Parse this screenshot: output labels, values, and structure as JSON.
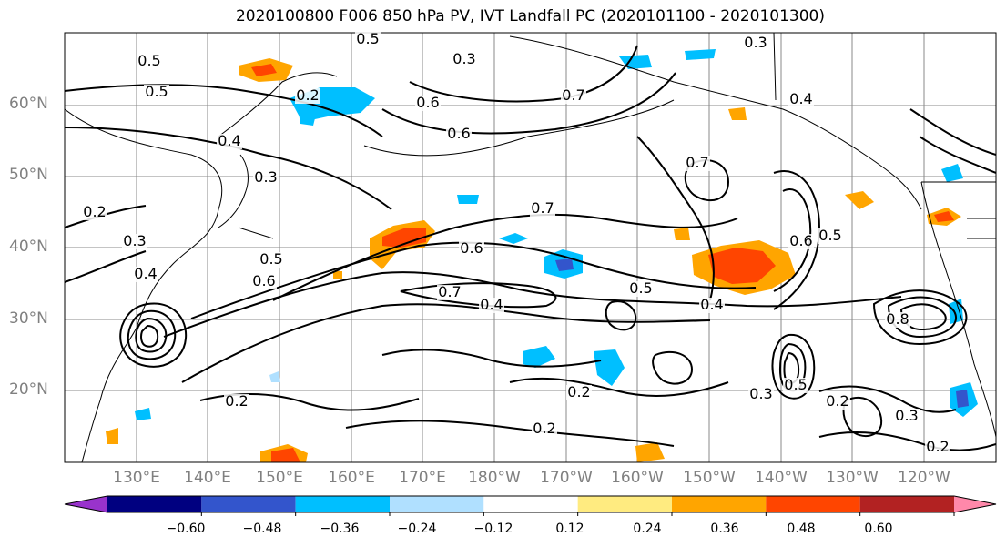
{
  "title": "2020100800 F006 850 hPa PV, IVT Landfall PC (2020101100 - 2020101300)",
  "lat_labels": [
    "60°N",
    "50°N",
    "40°N",
    "30°N",
    "20°N"
  ],
  "lon_labels": [
    "130°E",
    "140°E",
    "150°E",
    "160°E",
    "170°E",
    "180°W",
    "170°W",
    "160°W",
    "150°W",
    "140°W",
    "130°W",
    "120°W"
  ],
  "contour_labels": [
    "0.5",
    "0.5",
    "0.6",
    "0.2",
    "0.4",
    "0.3",
    "0.6",
    "0.3",
    "0.5",
    "0.7",
    "0.3",
    "0.4",
    "0.4",
    "0.2",
    "0.3",
    "0.2",
    "0.5",
    "0.6",
    "0.7",
    "0.6",
    "0.5",
    "0.7",
    "0.5",
    "0.4",
    "0.6",
    "0.5",
    "0.7",
    "0.8",
    "0.4",
    "0.2",
    "0.3",
    "0.2",
    "0.3",
    "0.2",
    "0.2"
  ],
  "colorbar": {
    "colors": [
      "#9933cc",
      "#000080",
      "#3355cc",
      "#00bfff",
      "#b0e0ff",
      "#ffffff",
      "#ffeb80",
      "#ffa500",
      "#ff4500",
      "#b22222",
      "#ff88aa"
    ],
    "tick_labels": [
      "−0.60",
      "−0.48",
      "−0.36",
      "−0.24",
      "−0.12",
      "0.12",
      "0.24",
      "0.36",
      "0.48",
      "0.60"
    ]
  },
  "map_colors": {
    "positive_low": "#ffa500",
    "positive_mid": "#ff4500",
    "negative_low": "#00bfff",
    "negative_mid": "#3355cc",
    "land": "#000000",
    "grid": "#888888"
  }
}
